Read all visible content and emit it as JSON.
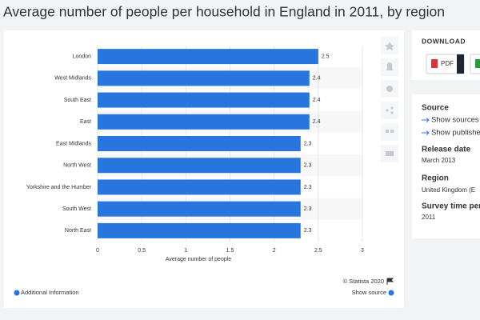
{
  "page_title": "Average number of people per household in England in 2011, by region",
  "chart_data": {
    "type": "bar",
    "orientation": "horizontal",
    "categories": [
      "London",
      "West Midlands",
      "South East",
      "East",
      "East Midlands",
      "North West",
      "Yorkshire and the Humber",
      "South West",
      "North East"
    ],
    "values": [
      2.5,
      2.4,
      2.4,
      2.4,
      2.3,
      2.3,
      2.3,
      2.3,
      2.3
    ],
    "color": "#2876dd",
    "x_label": "Average number of people",
    "xlim": [
      0,
      3
    ],
    "xticks": [
      0,
      0.5,
      1,
      1.5,
      2,
      2.5,
      3
    ],
    "grid": true
  },
  "footer": {
    "copyright": "© Statista 2020",
    "additional_info": "Additional Information",
    "show_source": "Show source"
  },
  "sidebar": {
    "download": "DOWNLOAD",
    "pdf": "PDF",
    "plus": "+",
    "source_heading": "Source",
    "show_sources": "Show sources",
    "show_publisher": "Show publishe",
    "release_heading": "Release date",
    "release": "March 2013",
    "region_heading": "Region",
    "region": "United Kingdom (E",
    "survey_heading": "Survey time per",
    "survey": "2011"
  }
}
